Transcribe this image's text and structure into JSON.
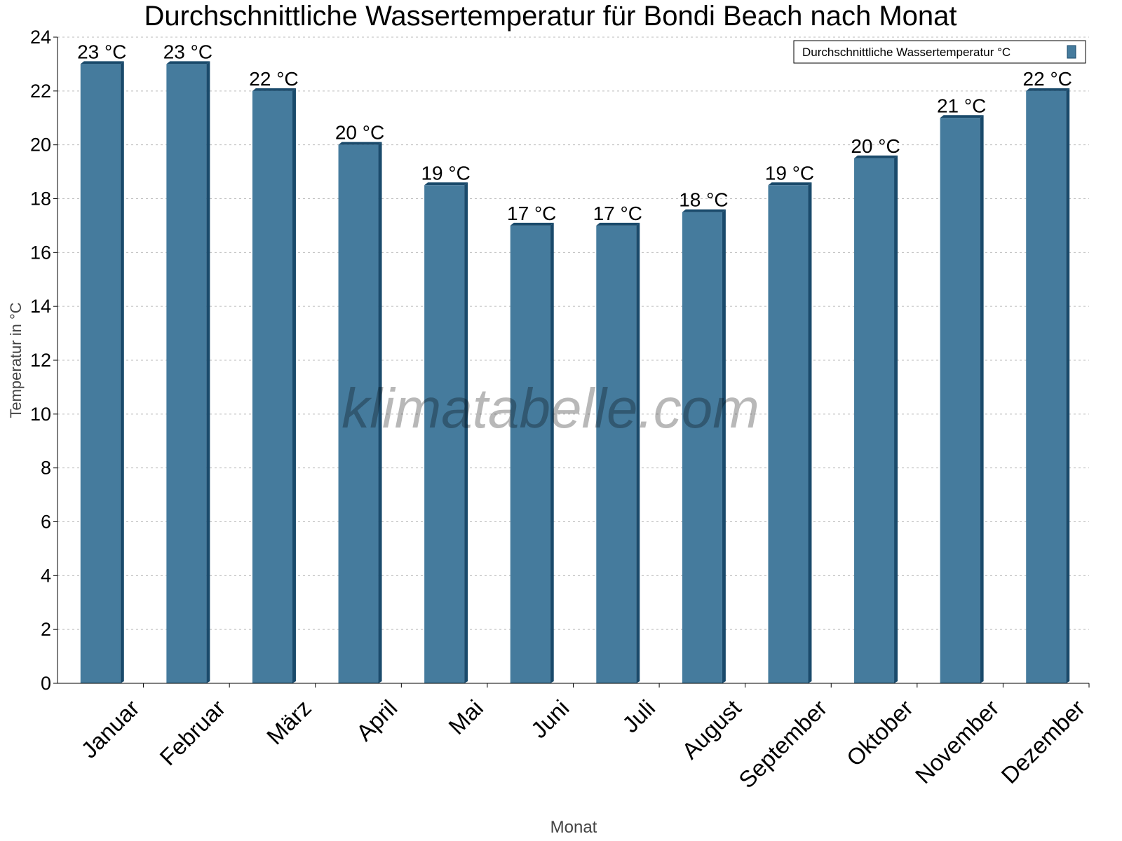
{
  "chart_data": {
    "type": "bar",
    "title": "Durchschnittliche Wassertemperatur für Bondi Beach nach Monat",
    "xlabel": "Monat",
    "ylabel": "Temperatur in °C",
    "ylim": [
      0,
      24
    ],
    "yticks": [
      0,
      2,
      4,
      6,
      8,
      10,
      12,
      14,
      16,
      18,
      20,
      22,
      24
    ],
    "grid": true,
    "legend_position": "top-right",
    "categories": [
      "Januar",
      "Februar",
      "März",
      "April",
      "Mai",
      "Juni",
      "Juli",
      "August",
      "September",
      "Oktober",
      "November",
      "Dezember"
    ],
    "series": [
      {
        "name": "Durchschnittliche Wassertemperatur °C",
        "values": [
          23,
          23,
          22,
          20,
          18.5,
          17,
          17,
          17.5,
          18.5,
          19.5,
          21,
          22
        ],
        "data_labels": [
          "23 °C",
          "23 °C",
          "22 °C",
          "20 °C",
          "19 °C",
          "17 °C",
          "17 °C",
          "18 °C",
          "19 °C",
          "20 °C",
          "21 °C",
          "22 °C"
        ],
        "color": "#457b9d",
        "side_color": "#1a4a6b"
      }
    ],
    "watermark": "klimatabelle.com"
  }
}
